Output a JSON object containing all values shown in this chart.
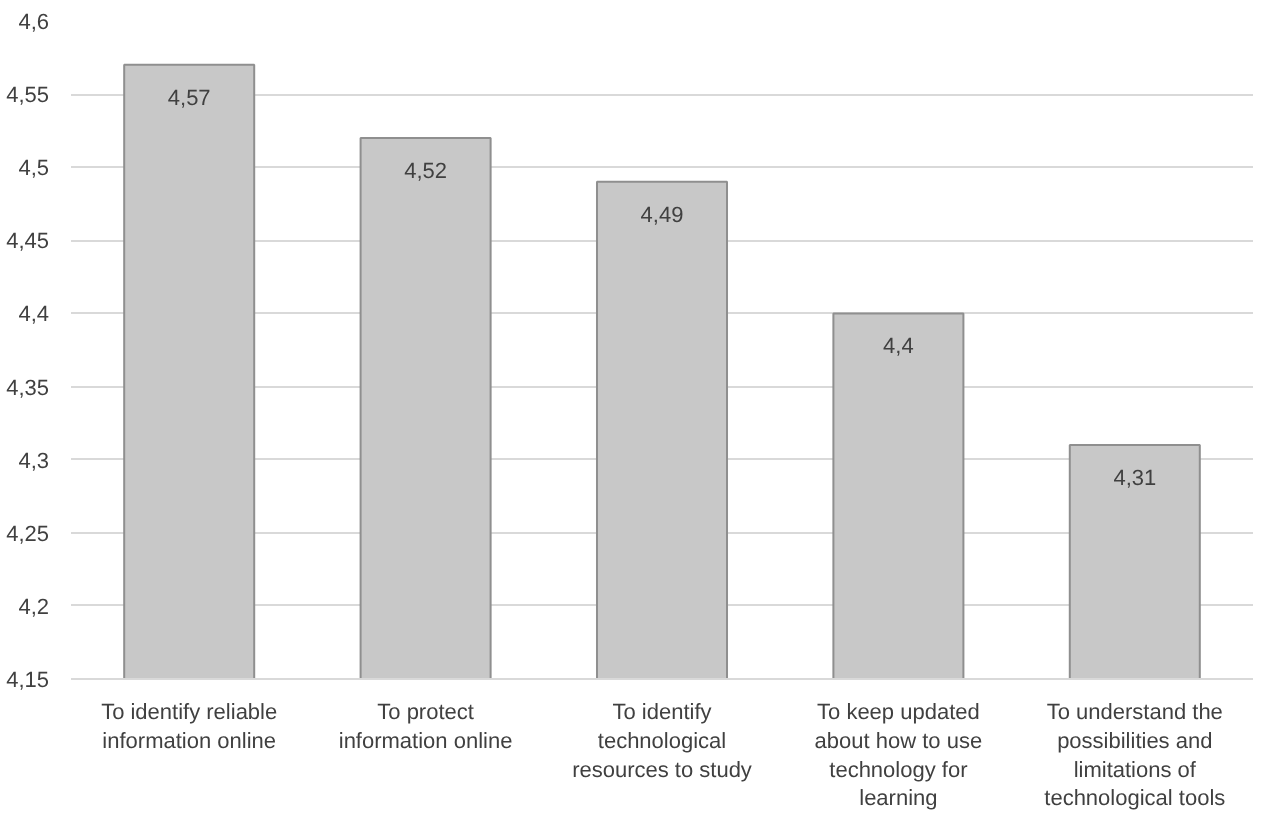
{
  "chart_data": {
    "type": "bar",
    "categories": [
      "To identify reliable information online",
      "To protect information online",
      "To identify technological resources to study",
      "To keep updated about how to use technology for learning",
      "To understand the possibilities and limitations of technological tools"
    ],
    "values": [
      4.57,
      4.52,
      4.49,
      4.4,
      4.31
    ],
    "value_labels": [
      "4,57",
      "4,52",
      "4,49",
      "4,4",
      "4,31"
    ],
    "color": "#c8c8c8",
    "ylim": [
      4.15,
      4.6
    ],
    "yticks": [
      {
        "value": 4.15,
        "label": "4,15"
      },
      {
        "value": 4.2,
        "label": "4,2"
      },
      {
        "value": 4.25,
        "label": "4,25"
      },
      {
        "value": 4.3,
        "label": "4,3"
      },
      {
        "value": 4.35,
        "label": "4,35"
      },
      {
        "value": 4.4,
        "label": "4,4"
      },
      {
        "value": 4.45,
        "label": "4,45"
      },
      {
        "value": 4.5,
        "label": "4,5"
      },
      {
        "value": 4.55,
        "label": "4,55"
      },
      {
        "value": 4.6,
        "label": "4,6"
      }
    ],
    "grid": "y"
  }
}
